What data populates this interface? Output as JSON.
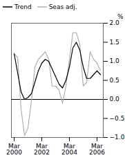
{
  "chart_data": {
    "type": "line",
    "ylabel": "%",
    "categories": [
      "Mar\n2000",
      null,
      null,
      null,
      null,
      null,
      null,
      null,
      "Mar\n2002",
      null,
      null,
      null,
      null,
      null,
      null,
      null,
      "Mar\n2004",
      null,
      null,
      null,
      null,
      null,
      null,
      null,
      "Mar\n2006",
      null
    ],
    "series": [
      {
        "name": "Trend",
        "color": "#000000",
        "values": [
          1.2,
          0.7,
          0.2,
          0.0,
          0.05,
          0.15,
          0.45,
          0.75,
          0.95,
          1.05,
          1.0,
          0.8,
          0.6,
          0.4,
          0.3,
          0.5,
          0.85,
          1.35,
          1.5,
          1.3,
          0.85,
          0.55,
          0.55,
          0.65,
          0.75,
          0.65
        ]
      },
      {
        "name": "Seas adj.",
        "color": "#b0b0b0",
        "values": [
          1.2,
          1.1,
          -0.25,
          -0.95,
          -0.75,
          -0.05,
          0.85,
          1.05,
          1.15,
          1.25,
          1.05,
          0.35,
          0.35,
          0.25,
          -0.1,
          0.35,
          1.05,
          1.75,
          1.75,
          1.45,
          0.35,
          0.45,
          1.25,
          1.05,
          0.95,
          0.75
        ]
      }
    ],
    "ylim": [
      -1.0,
      2.0
    ],
    "yticks": [
      {
        "value": -1.0,
        "label": "−1.0"
      },
      {
        "value": -0.5,
        "label": "−0.5"
      },
      {
        "value": 0.0,
        "label": "0.0"
      },
      0.5,
      {
        "value": 1.0,
        "label": "1.0"
      },
      1.5,
      {
        "value": 2.0,
        "label": "2.0"
      }
    ],
    "legend": "upper left"
  }
}
